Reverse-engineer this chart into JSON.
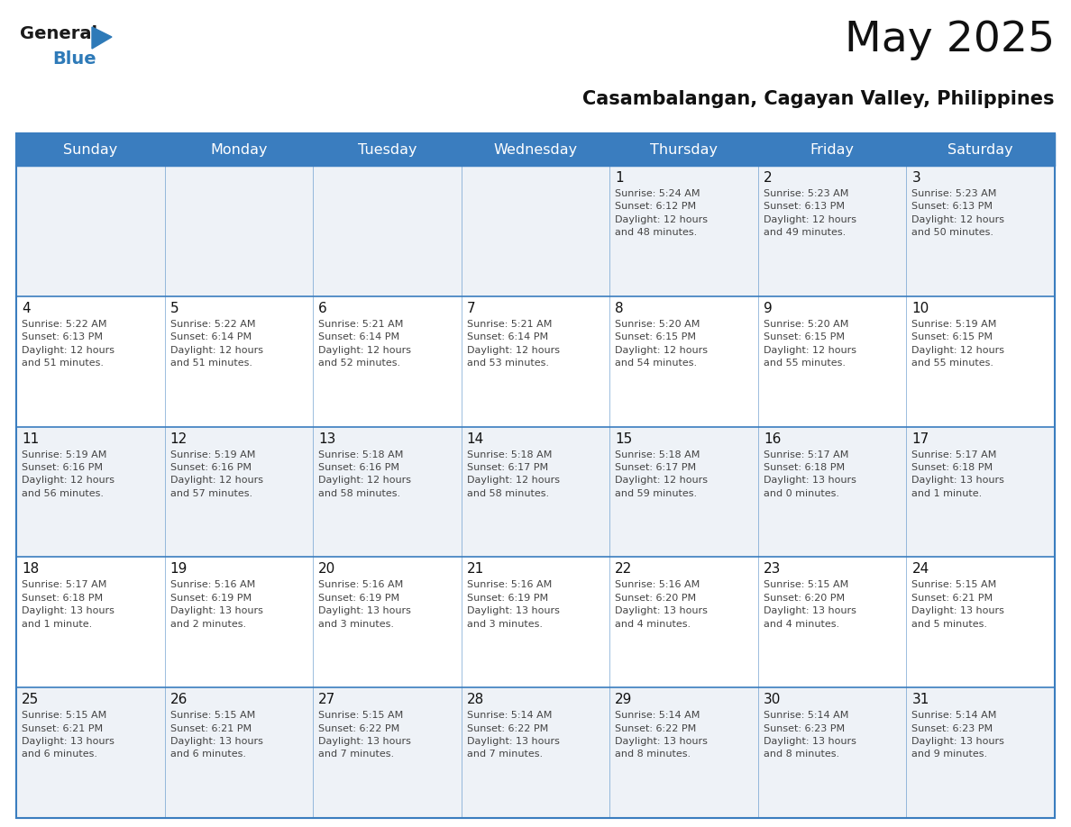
{
  "title": "May 2025",
  "subtitle": "Casambalangan, Cagayan Valley, Philippines",
  "days_of_week": [
    "Sunday",
    "Monday",
    "Tuesday",
    "Wednesday",
    "Thursday",
    "Friday",
    "Saturday"
  ],
  "header_bg": "#3a7dbf",
  "header_text": "#ffffff",
  "cell_bg_odd": "#eef2f7",
  "cell_bg_even": "#ffffff",
  "border_color": "#3a7dbf",
  "text_color": "#444444",
  "day_num_color": "#111111",
  "logo_general_color": "#1a1a1a",
  "logo_blue_color": "#2e7ab8",
  "weeks": [
    [
      {
        "day": null,
        "info": null
      },
      {
        "day": null,
        "info": null
      },
      {
        "day": null,
        "info": null
      },
      {
        "day": null,
        "info": null
      },
      {
        "day": 1,
        "info": "Sunrise: 5:24 AM\nSunset: 6:12 PM\nDaylight: 12 hours\nand 48 minutes."
      },
      {
        "day": 2,
        "info": "Sunrise: 5:23 AM\nSunset: 6:13 PM\nDaylight: 12 hours\nand 49 minutes."
      },
      {
        "day": 3,
        "info": "Sunrise: 5:23 AM\nSunset: 6:13 PM\nDaylight: 12 hours\nand 50 minutes."
      }
    ],
    [
      {
        "day": 4,
        "info": "Sunrise: 5:22 AM\nSunset: 6:13 PM\nDaylight: 12 hours\nand 51 minutes."
      },
      {
        "day": 5,
        "info": "Sunrise: 5:22 AM\nSunset: 6:14 PM\nDaylight: 12 hours\nand 51 minutes."
      },
      {
        "day": 6,
        "info": "Sunrise: 5:21 AM\nSunset: 6:14 PM\nDaylight: 12 hours\nand 52 minutes."
      },
      {
        "day": 7,
        "info": "Sunrise: 5:21 AM\nSunset: 6:14 PM\nDaylight: 12 hours\nand 53 minutes."
      },
      {
        "day": 8,
        "info": "Sunrise: 5:20 AM\nSunset: 6:15 PM\nDaylight: 12 hours\nand 54 minutes."
      },
      {
        "day": 9,
        "info": "Sunrise: 5:20 AM\nSunset: 6:15 PM\nDaylight: 12 hours\nand 55 minutes."
      },
      {
        "day": 10,
        "info": "Sunrise: 5:19 AM\nSunset: 6:15 PM\nDaylight: 12 hours\nand 55 minutes."
      }
    ],
    [
      {
        "day": 11,
        "info": "Sunrise: 5:19 AM\nSunset: 6:16 PM\nDaylight: 12 hours\nand 56 minutes."
      },
      {
        "day": 12,
        "info": "Sunrise: 5:19 AM\nSunset: 6:16 PM\nDaylight: 12 hours\nand 57 minutes."
      },
      {
        "day": 13,
        "info": "Sunrise: 5:18 AM\nSunset: 6:16 PM\nDaylight: 12 hours\nand 58 minutes."
      },
      {
        "day": 14,
        "info": "Sunrise: 5:18 AM\nSunset: 6:17 PM\nDaylight: 12 hours\nand 58 minutes."
      },
      {
        "day": 15,
        "info": "Sunrise: 5:18 AM\nSunset: 6:17 PM\nDaylight: 12 hours\nand 59 minutes."
      },
      {
        "day": 16,
        "info": "Sunrise: 5:17 AM\nSunset: 6:18 PM\nDaylight: 13 hours\nand 0 minutes."
      },
      {
        "day": 17,
        "info": "Sunrise: 5:17 AM\nSunset: 6:18 PM\nDaylight: 13 hours\nand 1 minute."
      }
    ],
    [
      {
        "day": 18,
        "info": "Sunrise: 5:17 AM\nSunset: 6:18 PM\nDaylight: 13 hours\nand 1 minute."
      },
      {
        "day": 19,
        "info": "Sunrise: 5:16 AM\nSunset: 6:19 PM\nDaylight: 13 hours\nand 2 minutes."
      },
      {
        "day": 20,
        "info": "Sunrise: 5:16 AM\nSunset: 6:19 PM\nDaylight: 13 hours\nand 3 minutes."
      },
      {
        "day": 21,
        "info": "Sunrise: 5:16 AM\nSunset: 6:19 PM\nDaylight: 13 hours\nand 3 minutes."
      },
      {
        "day": 22,
        "info": "Sunrise: 5:16 AM\nSunset: 6:20 PM\nDaylight: 13 hours\nand 4 minutes."
      },
      {
        "day": 23,
        "info": "Sunrise: 5:15 AM\nSunset: 6:20 PM\nDaylight: 13 hours\nand 4 minutes."
      },
      {
        "day": 24,
        "info": "Sunrise: 5:15 AM\nSunset: 6:21 PM\nDaylight: 13 hours\nand 5 minutes."
      }
    ],
    [
      {
        "day": 25,
        "info": "Sunrise: 5:15 AM\nSunset: 6:21 PM\nDaylight: 13 hours\nand 6 minutes."
      },
      {
        "day": 26,
        "info": "Sunrise: 5:15 AM\nSunset: 6:21 PM\nDaylight: 13 hours\nand 6 minutes."
      },
      {
        "day": 27,
        "info": "Sunrise: 5:15 AM\nSunset: 6:22 PM\nDaylight: 13 hours\nand 7 minutes."
      },
      {
        "day": 28,
        "info": "Sunrise: 5:14 AM\nSunset: 6:22 PM\nDaylight: 13 hours\nand 7 minutes."
      },
      {
        "day": 29,
        "info": "Sunrise: 5:14 AM\nSunset: 6:22 PM\nDaylight: 13 hours\nand 8 minutes."
      },
      {
        "day": 30,
        "info": "Sunrise: 5:14 AM\nSunset: 6:23 PM\nDaylight: 13 hours\nand 8 minutes."
      },
      {
        "day": 31,
        "info": "Sunrise: 5:14 AM\nSunset: 6:23 PM\nDaylight: 13 hours\nand 9 minutes."
      }
    ]
  ]
}
